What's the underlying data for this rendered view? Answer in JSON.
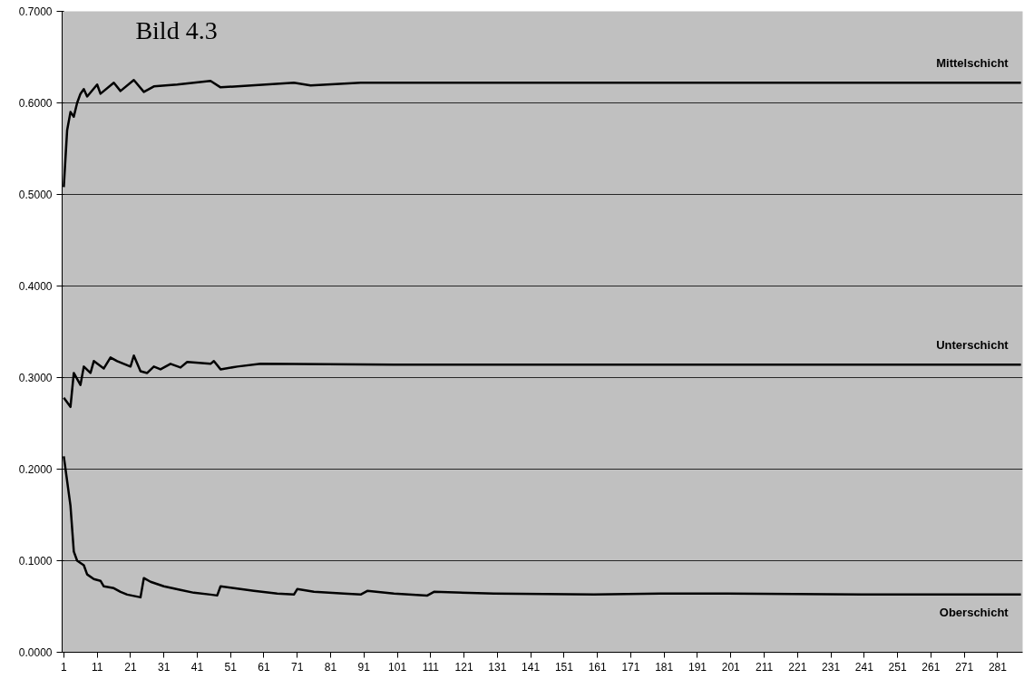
{
  "chart_data": {
    "type": "line",
    "title": "Bild 4.3",
    "xlim": [
      0.5,
      288.5
    ],
    "xticks": [
      1,
      11,
      21,
      31,
      41,
      51,
      61,
      71,
      81,
      91,
      101,
      111,
      121,
      131,
      141,
      151,
      161,
      171,
      181,
      191,
      201,
      211,
      221,
      231,
      241,
      251,
      261,
      271,
      281
    ],
    "ylim": [
      0,
      0.7
    ],
    "yticks": [
      {
        "value": 0,
        "label": "0.0000"
      },
      {
        "value": 0.1,
        "label": "0.1000"
      },
      {
        "value": 0.2,
        "label": "0.2000"
      },
      {
        "value": 0.3,
        "label": "0.3000"
      },
      {
        "value": 0.4,
        "label": "0.4000"
      },
      {
        "value": 0.5,
        "label": "0.5000"
      },
      {
        "value": 0.6,
        "label": "0.6000"
      },
      {
        "value": 0.7,
        "label": "0.7000"
      }
    ],
    "grid": "y",
    "marker": "none",
    "line_style": "solid",
    "series": [
      {
        "name": "Mittelschicht",
        "color": "#000000",
        "x": [
          1,
          2,
          3,
          4,
          5,
          6,
          7,
          8,
          11,
          12,
          16,
          18,
          22,
          25,
          28,
          35,
          45,
          48,
          70,
          75,
          90,
          110,
          150,
          200,
          250,
          288
        ],
        "values": [
          0.508,
          0.57,
          0.59,
          0.585,
          0.6,
          0.61,
          0.615,
          0.607,
          0.62,
          0.61,
          0.622,
          0.613,
          0.625,
          0.612,
          0.618,
          0.62,
          0.624,
          0.617,
          0.622,
          0.619,
          0.622,
          0.622,
          0.622,
          0.622,
          0.622,
          0.622
        ]
      },
      {
        "name": "Unterschicht",
        "color": "#000000",
        "x": [
          1,
          3,
          4,
          6,
          7,
          9,
          10,
          13,
          15,
          17,
          21,
          22,
          24,
          26,
          28,
          30,
          33,
          36,
          38,
          45,
          46,
          48,
          53,
          60,
          100,
          150,
          200,
          250,
          288
        ],
        "values": [
          0.278,
          0.268,
          0.305,
          0.292,
          0.312,
          0.305,
          0.318,
          0.31,
          0.322,
          0.318,
          0.312,
          0.324,
          0.307,
          0.305,
          0.312,
          0.309,
          0.315,
          0.311,
          0.317,
          0.315,
          0.318,
          0.309,
          0.312,
          0.315,
          0.314,
          0.314,
          0.314,
          0.314,
          0.314
        ]
      },
      {
        "name": "Oberschicht",
        "color": "#000000",
        "x": [
          1,
          3,
          4,
          5,
          7,
          8,
          10,
          12,
          13,
          16,
          18,
          20,
          24,
          25,
          27,
          31,
          36,
          40,
          45,
          47,
          48,
          52,
          58,
          65,
          70,
          71,
          76,
          85,
          90,
          92,
          100,
          110,
          112,
          130,
          160,
          180,
          200,
          240,
          288
        ],
        "values": [
          0.214,
          0.16,
          0.11,
          0.1,
          0.095,
          0.085,
          0.08,
          0.078,
          0.072,
          0.07,
          0.066,
          0.063,
          0.06,
          0.081,
          0.077,
          0.072,
          0.068,
          0.065,
          0.063,
          0.062,
          0.072,
          0.07,
          0.067,
          0.064,
          0.063,
          0.069,
          0.066,
          0.064,
          0.063,
          0.067,
          0.064,
          0.062,
          0.066,
          0.064,
          0.063,
          0.064,
          0.064,
          0.063,
          0.063
        ]
      }
    ]
  }
}
